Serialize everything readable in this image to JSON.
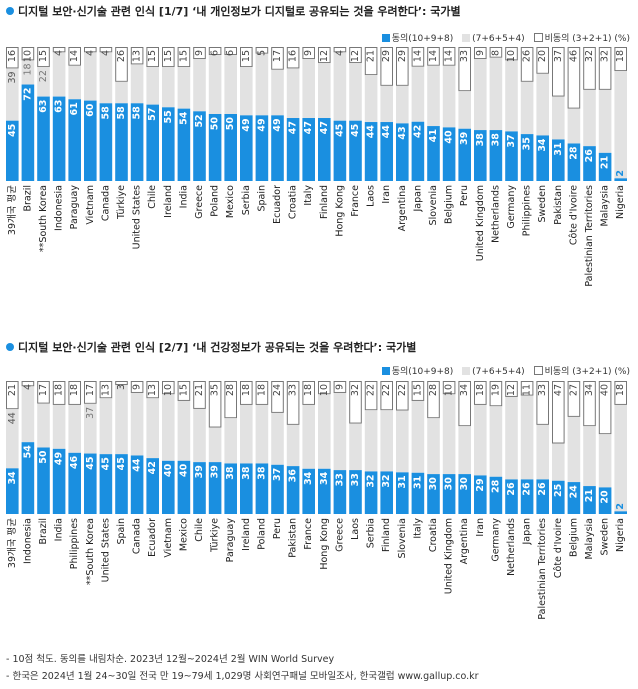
{
  "charts": [
    {
      "title": "디지털 보안·신기술 관련 인식 [1/7] ‘내 개인정보가 디지털로 공유되는 것을 우려한다’: 국가별",
      "legend": [
        "동의(10+9+8)",
        "(7+6+5+4)",
        "비동의 (3+2+1) (%)"
      ]
    },
    {
      "title": "디지털 보안·신기술 관련 인식 [2/7] ‘내 건강정보가 공유되는 것을 우려한다’: 국가별",
      "legend": [
        "동의(10+9+8)",
        "(7+6+5+4)",
        "비동의 (3+2+1) (%)"
      ]
    }
  ],
  "colors": {
    "agree": "#1a8fe0",
    "middle": "#e2e2e2",
    "disagree_border": "#777777",
    "accent": "#1a8fe0"
  },
  "notes": [
    "- 10점 척도. 동의를 내림차순. 2023년 12월~2024년 2월 WIN World Survey",
    "- 한국은 2024년 1월 24~30일 전국 만 19~79세 1,029명 사회연구패널 모바일조사, 한국갤럽 www.gallup.co.kr"
  ],
  "chart_data": [
    {
      "type": "bar",
      "stacked": true,
      "ylim": [
        0,
        100
      ],
      "categories": [
        "39개국 평균",
        "Brazil",
        "**South Korea",
        "Indonesia",
        "Paraguay",
        "Vietnam",
        "Canada",
        "Türkiye",
        "United States",
        "Chile",
        "Ireland",
        "India",
        "Greece",
        "Poland",
        "Mexico",
        "Serbia",
        "Spain",
        "Ecuador",
        "Croatia",
        "Italy",
        "Finland",
        "Hong Kong",
        "France",
        "Laos",
        "Iran",
        "Argentina",
        "Japan",
        "Slovenia",
        "Belgium",
        "Peru",
        "United Kingdom",
        "Netherlands",
        "Germany",
        "Philippines",
        "Sweden",
        "Pakistan",
        "Côte d'Ivoire",
        "Palestinian Territories",
        "Malaysia",
        "Nigeria"
      ],
      "series": [
        {
          "name": "동의(10+9+8)",
          "values": [
            45,
            72,
            63,
            63,
            61,
            60,
            58,
            58,
            58,
            57,
            55,
            54,
            52,
            50,
            50,
            49,
            49,
            49,
            47,
            47,
            47,
            45,
            45,
            44,
            44,
            43,
            42,
            41,
            40,
            39,
            38,
            38,
            37,
            35,
            34,
            31,
            28,
            26,
            21,
            2
          ]
        },
        {
          "name": "(7+6+5+4)",
          "values": [
            39,
            18,
            22,
            33,
            25,
            36,
            38,
            16,
            29,
            28,
            30,
            31,
            39,
            44,
            44,
            36,
            46,
            34,
            37,
            44,
            41,
            51,
            43,
            35,
            27,
            28,
            39,
            45,
            46,
            28,
            53,
            54,
            53,
            39,
            46,
            32,
            26,
            42,
            47,
            80
          ]
        },
        {
          "name": "비동의 (3+2+1)",
          "values": [
            16,
            10,
            15,
            4,
            14,
            4,
            4,
            26,
            13,
            15,
            15,
            15,
            9,
            6,
            6,
            15,
            5,
            17,
            16,
            9,
            12,
            4,
            12,
            21,
            29,
            29,
            14,
            14,
            14,
            33,
            9,
            8,
            10,
            26,
            20,
            37,
            46,
            32,
            32,
            18
          ]
        }
      ]
    },
    {
      "type": "bar",
      "stacked": true,
      "ylim": [
        0,
        100
      ],
      "categories": [
        "39개국 평균",
        "Indonesia",
        "Brazil",
        "India",
        "Philippines",
        "**South Korea",
        "United States",
        "Spain",
        "Canada",
        "Ecuador",
        "Vietnam",
        "Mexico",
        "Chile",
        "Türkiye",
        "Paraguay",
        "Ireland",
        "Poland",
        "Peru",
        "Pakistan",
        "France",
        "Hong Kong",
        "Greece",
        "Laos",
        "Serbia",
        "Finland",
        "Slovenia",
        "Italy",
        "Croatia",
        "United Kingdom",
        "Argentina",
        "Iran",
        "Germany",
        "Netherlands",
        "Japan",
        "Palestinian Territories",
        "Côte d'Ivoire",
        "Belgium",
        "Malaysia",
        "Sweden",
        "Nigeria"
      ],
      "series": [
        {
          "name": "동의(10+9+8)",
          "values": [
            34,
            54,
            50,
            49,
            46,
            45,
            45,
            45,
            44,
            42,
            40,
            40,
            39,
            39,
            38,
            38,
            38,
            37,
            36,
            34,
            34,
            33,
            33,
            32,
            32,
            31,
            31,
            30,
            30,
            30,
            29,
            28,
            26,
            26,
            26,
            25,
            24,
            21,
            20,
            2
          ]
        },
        {
          "name": "(7+6+5+4)",
          "values": [
            44,
            42,
            33,
            33,
            36,
            37,
            42,
            52,
            47,
            45,
            50,
            45,
            40,
            26,
            34,
            44,
            44,
            39,
            31,
            48,
            56,
            58,
            35,
            46,
            46,
            46,
            54,
            42,
            60,
            36,
            53,
            53,
            62,
            63,
            41,
            28,
            49,
            45,
            40,
            80
          ]
        },
        {
          "name": "비동의 (3+2+1)",
          "values": [
            21,
            4,
            17,
            18,
            18,
            17,
            13,
            3,
            9,
            13,
            10,
            15,
            21,
            35,
            28,
            18,
            18,
            24,
            33,
            18,
            10,
            9,
            32,
            22,
            22,
            22,
            15,
            28,
            10,
            34,
            18,
            19,
            12,
            11,
            33,
            47,
            27,
            34,
            40,
            18
          ]
        }
      ]
    }
  ]
}
